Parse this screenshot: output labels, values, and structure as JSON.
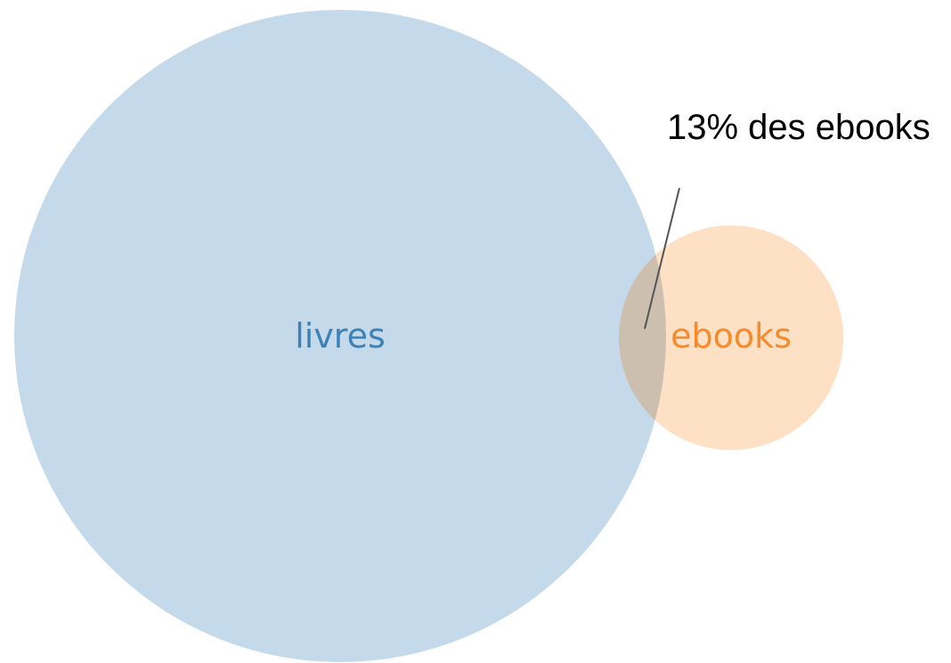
{
  "diagram": {
    "type": "venn",
    "sets": [
      {
        "name": "livres",
        "fill": "#c4d9ea",
        "label_color": "#3c82b9"
      },
      {
        "name": "ebooks",
        "fill": "#fee0c5",
        "label_color": "#f58b2c"
      }
    ],
    "overlap": {
      "fill": "#cdbfaf",
      "annotation": "13% des ebooks",
      "line_color": "#555555",
      "annotation_color": "#000000"
    }
  }
}
